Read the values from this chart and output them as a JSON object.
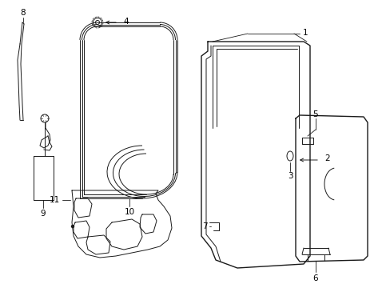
{
  "background_color": "#ffffff",
  "line_color": "#1a1a1a",
  "lw_main": 1.0,
  "lw_thin": 0.7,
  "lw_label": 0.6,
  "fontsize": 7.5
}
